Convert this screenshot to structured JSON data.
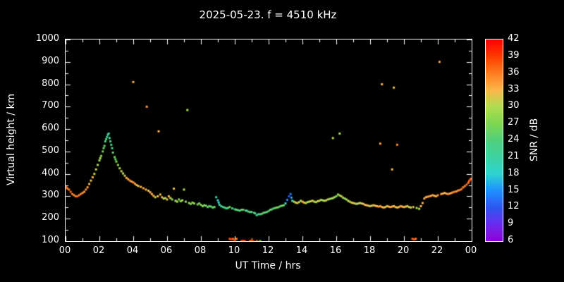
{
  "colors": {
    "background": "#000000",
    "foreground": "#ffffff"
  },
  "chart_data": {
    "type": "scatter",
    "title": "2025-05-23. f = 4510 kHz",
    "xlabel": "UT Time / hrs",
    "ylabel": "Virtual height / km",
    "colorbar_label": "SNR / dB",
    "xlim": [
      0,
      24
    ],
    "ylim": [
      100,
      1000
    ],
    "grid": false,
    "legend": "colorbar-right",
    "xticks": {
      "values": [
        0,
        2,
        4,
        6,
        8,
        10,
        12,
        14,
        16,
        18,
        20,
        22,
        24
      ],
      "labels": [
        "00",
        "02",
        "04",
        "06",
        "08",
        "10",
        "12",
        "14",
        "16",
        "18",
        "20",
        "22",
        "00"
      ]
    },
    "yticks": {
      "values": [
        100,
        200,
        300,
        400,
        500,
        600,
        700,
        800,
        900,
        1000
      ],
      "labels": [
        "100",
        "200",
        "300",
        "400",
        "500",
        "600",
        "700",
        "800",
        "900",
        "1000"
      ]
    },
    "colorbar_ticks": {
      "values": [
        6,
        9,
        12,
        15,
        18,
        21,
        24,
        27,
        30,
        33,
        36,
        39,
        42
      ],
      "labels": [
        "6",
        "9",
        "12",
        "15",
        "18",
        "21",
        "24",
        "27",
        "30",
        "33",
        "36",
        "39",
        "42"
      ]
    },
    "colormap": {
      "values": [
        6,
        9,
        12,
        15,
        18,
        21,
        24,
        27,
        30,
        33,
        36,
        39,
        42
      ],
      "colors": [
        "#9400d3",
        "#6a2bf0",
        "#2b56f0",
        "#1e90ff",
        "#2fd3d3",
        "#3ed2a0",
        "#4fd07c",
        "#7ed64f",
        "#b0dc51",
        "#fdb44b",
        "#fd7d21",
        "#fe3a00",
        "#fe0000"
      ]
    },
    "points": [
      [
        0.05,
        340,
        37
      ],
      [
        0.1,
        335,
        36
      ],
      [
        0.2,
        330,
        36
      ],
      [
        0.3,
        320,
        37
      ],
      [
        0.4,
        310,
        36
      ],
      [
        0.5,
        305,
        35
      ],
      [
        0.6,
        300,
        36
      ],
      [
        0.7,
        300,
        37
      ],
      [
        0.8,
        305,
        36
      ],
      [
        0.9,
        310,
        36
      ],
      [
        1.0,
        315,
        35
      ],
      [
        1.1,
        320,
        34
      ],
      [
        1.2,
        330,
        35
      ],
      [
        1.3,
        340,
        34
      ],
      [
        1.4,
        355,
        33
      ],
      [
        1.5,
        370,
        32
      ],
      [
        1.6,
        385,
        33
      ],
      [
        1.7,
        400,
        31
      ],
      [
        1.8,
        420,
        31
      ],
      [
        1.9,
        440,
        30
      ],
      [
        2.0,
        460,
        29
      ],
      [
        2.05,
        470,
        30
      ],
      [
        2.1,
        480,
        28
      ],
      [
        2.2,
        500,
        27
      ],
      [
        2.25,
        515,
        26
      ],
      [
        2.3,
        525,
        25
      ],
      [
        2.35,
        545,
        24
      ],
      [
        2.4,
        555,
        23
      ],
      [
        2.45,
        565,
        22
      ],
      [
        2.5,
        575,
        21
      ],
      [
        2.55,
        580,
        22
      ],
      [
        2.6,
        560,
        22
      ],
      [
        2.65,
        545,
        23
      ],
      [
        2.7,
        530,
        24
      ],
      [
        2.75,
        515,
        23
      ],
      [
        2.8,
        495,
        25
      ],
      [
        2.9,
        475,
        26
      ],
      [
        2.95,
        465,
        25
      ],
      [
        3.0,
        455,
        27
      ],
      [
        3.1,
        440,
        28
      ],
      [
        3.2,
        425,
        30
      ],
      [
        3.3,
        412,
        31
      ],
      [
        3.4,
        402,
        30
      ],
      [
        3.5,
        392,
        32
      ],
      [
        3.6,
        382,
        33
      ],
      [
        3.7,
        376,
        34
      ],
      [
        3.8,
        370,
        35
      ],
      [
        3.9,
        366,
        34
      ],
      [
        4.0,
        362,
        35
      ],
      [
        4.0,
        810,
        33
      ],
      [
        4.1,
        356,
        34
      ],
      [
        4.2,
        350,
        33
      ],
      [
        4.3,
        346,
        32
      ],
      [
        4.45,
        342,
        33
      ],
      [
        4.6,
        336,
        34
      ],
      [
        4.75,
        330,
        33
      ],
      [
        4.8,
        700,
        34
      ],
      [
        4.9,
        325,
        32
      ],
      [
        5.0,
        318,
        33
      ],
      [
        5.1,
        310,
        33
      ],
      [
        5.2,
        302,
        34
      ],
      [
        5.3,
        296,
        30
      ],
      [
        5.45,
        300,
        33
      ],
      [
        5.5,
        590,
        33
      ],
      [
        5.6,
        308,
        32
      ],
      [
        5.7,
        296,
        33
      ],
      [
        5.8,
        290,
        30
      ],
      [
        5.9,
        292,
        31
      ],
      [
        6.0,
        286,
        32
      ],
      [
        6.1,
        300,
        33
      ],
      [
        6.2,
        292,
        30
      ],
      [
        6.3,
        286,
        28
      ],
      [
        6.4,
        334,
        32
      ],
      [
        6.5,
        280,
        30
      ],
      [
        6.6,
        276,
        29
      ],
      [
        6.7,
        286,
        27
      ],
      [
        6.8,
        278,
        28
      ],
      [
        6.9,
        282,
        30
      ],
      [
        7.0,
        330,
        30
      ],
      [
        7.1,
        276,
        28
      ],
      [
        7.2,
        685,
        30
      ],
      [
        7.3,
        270,
        29
      ],
      [
        7.4,
        266,
        27
      ],
      [
        7.5,
        272,
        28
      ],
      [
        7.6,
        268,
        28
      ],
      [
        7.8,
        264,
        26
      ],
      [
        7.9,
        268,
        27
      ],
      [
        8.0,
        262,
        27
      ],
      [
        8.1,
        256,
        28
      ],
      [
        8.2,
        260,
        27
      ],
      [
        8.3,
        258,
        26
      ],
      [
        8.4,
        252,
        25
      ],
      [
        8.5,
        256,
        26
      ],
      [
        8.6,
        254,
        24
      ],
      [
        8.7,
        250,
        25
      ],
      [
        8.8,
        252,
        26
      ],
      [
        8.9,
        296,
        20
      ],
      [
        9.0,
        282,
        18
      ],
      [
        9.05,
        272,
        19
      ],
      [
        9.1,
        262,
        21
      ],
      [
        9.2,
        256,
        22
      ],
      [
        9.3,
        252,
        23
      ],
      [
        9.4,
        250,
        24
      ],
      [
        9.5,
        246,
        22
      ],
      [
        9.6,
        248,
        25
      ],
      [
        9.7,
        252,
        26
      ],
      [
        9.7,
        110,
        38
      ],
      [
        9.8,
        108,
        39
      ],
      [
        9.85,
        246,
        23
      ],
      [
        9.9,
        110,
        37
      ],
      [
        10.0,
        105,
        38
      ],
      [
        10.0,
        242,
        24
      ],
      [
        10.1,
        110,
        36
      ],
      [
        10.1,
        240,
        25
      ],
      [
        10.2,
        238,
        24
      ],
      [
        10.3,
        236,
        24
      ],
      [
        10.4,
        100,
        38
      ],
      [
        10.4,
        240,
        25
      ],
      [
        10.5,
        102,
        39
      ],
      [
        10.5,
        240,
        26
      ],
      [
        10.6,
        100,
        38
      ],
      [
        10.65,
        236,
        23
      ],
      [
        10.7,
        236,
        22
      ],
      [
        10.8,
        232,
        24
      ],
      [
        10.9,
        100,
        37
      ],
      [
        10.9,
        230,
        24
      ],
      [
        11.0,
        102,
        38
      ],
      [
        11.0,
        230,
        23
      ],
      [
        11.1,
        100,
        39
      ],
      [
        11.15,
        226,
        24
      ],
      [
        11.2,
        224,
        24
      ],
      [
        11.3,
        100,
        36
      ],
      [
        11.3,
        216,
        21
      ],
      [
        11.4,
        220,
        23
      ],
      [
        11.5,
        100,
        27
      ],
      [
        11.5,
        220,
        24
      ],
      [
        11.6,
        222,
        25
      ],
      [
        11.7,
        226,
        26
      ],
      [
        11.8,
        228,
        24
      ],
      [
        11.9,
        230,
        25
      ],
      [
        12.0,
        234,
        24
      ],
      [
        12.1,
        240,
        26
      ],
      [
        12.2,
        242,
        25
      ],
      [
        12.3,
        246,
        24
      ],
      [
        12.4,
        248,
        26
      ],
      [
        12.5,
        250,
        27
      ],
      [
        12.6,
        252,
        25
      ],
      [
        12.7,
        256,
        25
      ],
      [
        12.8,
        258,
        26
      ],
      [
        12.9,
        260,
        26
      ],
      [
        13.0,
        268,
        18
      ],
      [
        13.1,
        284,
        15
      ],
      [
        13.2,
        300,
        12
      ],
      [
        13.3,
        310,
        14
      ],
      [
        13.35,
        294,
        16
      ],
      [
        13.4,
        280,
        20
      ],
      [
        13.5,
        276,
        30
      ],
      [
        13.6,
        272,
        32
      ],
      [
        13.7,
        270,
        31
      ],
      [
        13.8,
        274,
        31
      ],
      [
        13.9,
        280,
        29
      ],
      [
        14.0,
        276,
        33
      ],
      [
        14.1,
        272,
        32
      ],
      [
        14.2,
        270,
        31
      ],
      [
        14.3,
        274,
        30
      ],
      [
        14.4,
        276,
        30
      ],
      [
        14.5,
        278,
        31
      ],
      [
        14.6,
        280,
        32
      ],
      [
        14.7,
        276,
        30
      ],
      [
        14.8,
        274,
        30
      ],
      [
        14.9,
        278,
        31
      ],
      [
        15.0,
        280,
        31
      ],
      [
        15.1,
        284,
        29
      ],
      [
        15.2,
        282,
        30
      ],
      [
        15.3,
        280,
        30
      ],
      [
        15.4,
        282,
        31
      ],
      [
        15.5,
        286,
        31
      ],
      [
        15.6,
        288,
        29
      ],
      [
        15.7,
        290,
        28
      ],
      [
        15.8,
        560,
        31
      ],
      [
        15.8,
        292,
        30
      ],
      [
        15.9,
        296,
        30
      ],
      [
        16.0,
        300,
        27
      ],
      [
        16.1,
        308,
        29
      ],
      [
        16.2,
        580,
        30
      ],
      [
        16.2,
        304,
        30
      ],
      [
        16.3,
        300,
        31
      ],
      [
        16.4,
        294,
        29
      ],
      [
        16.5,
        290,
        28
      ],
      [
        16.6,
        286,
        30
      ],
      [
        16.7,
        280,
        30
      ],
      [
        16.8,
        276,
        31
      ],
      [
        16.9,
        272,
        31
      ],
      [
        17.0,
        270,
        32
      ],
      [
        17.1,
        268,
        31
      ],
      [
        17.2,
        266,
        30
      ],
      [
        17.3,
        268,
        31
      ],
      [
        17.4,
        270,
        31
      ],
      [
        17.5,
        268,
        32
      ],
      [
        17.6,
        266,
        32
      ],
      [
        17.7,
        262,
        33
      ],
      [
        17.8,
        260,
        33
      ],
      [
        17.9,
        258,
        32
      ],
      [
        18.0,
        256,
        31
      ],
      [
        18.1,
        258,
        32
      ],
      [
        18.2,
        260,
        32
      ],
      [
        18.3,
        258,
        33
      ],
      [
        18.4,
        256,
        33
      ],
      [
        18.5,
        254,
        34
      ],
      [
        18.6,
        535,
        34
      ],
      [
        18.6,
        256,
        34
      ],
      [
        18.7,
        800,
        33
      ],
      [
        18.7,
        252,
        33
      ],
      [
        18.8,
        250,
        33
      ],
      [
        18.9,
        252,
        32
      ],
      [
        19.0,
        256,
        32
      ],
      [
        19.1,
        254,
        33
      ],
      [
        19.2,
        252,
        34
      ],
      [
        19.3,
        420,
        33
      ],
      [
        19.3,
        254,
        33
      ],
      [
        19.4,
        785,
        32
      ],
      [
        19.4,
        256,
        33
      ],
      [
        19.5,
        252,
        32
      ],
      [
        19.6,
        530,
        35
      ],
      [
        19.6,
        250,
        32
      ],
      [
        19.7,
        252,
        33
      ],
      [
        19.8,
        256,
        34
      ],
      [
        19.9,
        254,
        33
      ],
      [
        20.0,
        252,
        33
      ],
      [
        20.1,
        254,
        32
      ],
      [
        20.2,
        256,
        32
      ],
      [
        20.3,
        252,
        31
      ],
      [
        20.4,
        250,
        31
      ],
      [
        20.5,
        110,
        37
      ],
      [
        20.55,
        252,
        32
      ],
      [
        20.6,
        108,
        38
      ],
      [
        20.7,
        110,
        36
      ],
      [
        20.75,
        248,
        30
      ],
      [
        20.9,
        244,
        30
      ],
      [
        21.0,
        256,
        33
      ],
      [
        21.1,
        270,
        33
      ],
      [
        21.2,
        290,
        34
      ],
      [
        21.3,
        296,
        33
      ],
      [
        21.4,
        298,
        34
      ],
      [
        21.5,
        300,
        35
      ],
      [
        21.6,
        302,
        34
      ],
      [
        21.7,
        305,
        34
      ],
      [
        21.8,
        302,
        33
      ],
      [
        21.9,
        300,
        33
      ],
      [
        22.0,
        305,
        35
      ],
      [
        22.1,
        900,
        34
      ],
      [
        22.2,
        310,
        34
      ],
      [
        22.3,
        312,
        34
      ],
      [
        22.4,
        315,
        33
      ],
      [
        22.5,
        312,
        34
      ],
      [
        22.6,
        310,
        35
      ],
      [
        22.7,
        312,
        34
      ],
      [
        22.8,
        315,
        34
      ],
      [
        22.9,
        318,
        35
      ],
      [
        23.0,
        320,
        36
      ],
      [
        23.1,
        322,
        35
      ],
      [
        23.2,
        326,
        35
      ],
      [
        23.3,
        328,
        36
      ],
      [
        23.4,
        332,
        36
      ],
      [
        23.5,
        340,
        35
      ],
      [
        23.6,
        346,
        36
      ],
      [
        23.7,
        352,
        37
      ],
      [
        23.8,
        360,
        36
      ],
      [
        23.85,
        368,
        37
      ],
      [
        23.9,
        372,
        38
      ],
      [
        23.95,
        378,
        37
      ]
    ]
  }
}
